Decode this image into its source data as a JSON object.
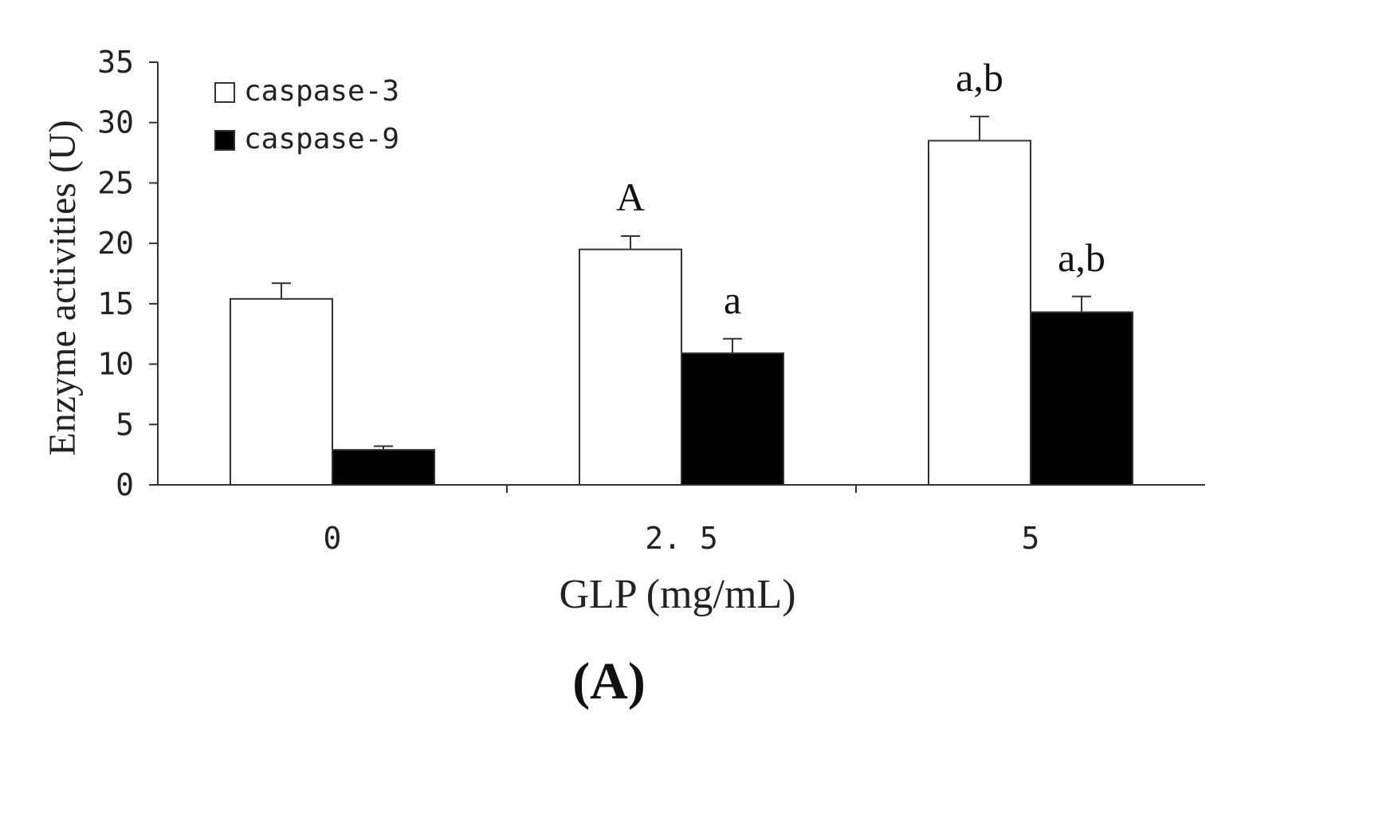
{
  "chart_data": {
    "type": "bar",
    "title": "",
    "panel_label": "(A)",
    "xlabel": "GLP (mg/mL)",
    "ylabel": "Enzyme activities (U)",
    "categories": [
      "0",
      "2. 5",
      "5"
    ],
    "ylim": [
      0,
      35
    ],
    "yticks": [
      "0",
      "5",
      "10",
      "15",
      "20",
      "25",
      "30",
      "35"
    ],
    "grid": false,
    "legend_position": "top-left",
    "series": [
      {
        "name": "caspase-3",
        "color": "#ffffff",
        "values": [
          15.4,
          19.5,
          28.5
        ],
        "errors": [
          1.3,
          1.1,
          2.0
        ],
        "annotations": [
          "",
          "A",
          "a,b"
        ]
      },
      {
        "name": "caspase-9",
        "color": "#000000",
        "values": [
          2.9,
          10.9,
          14.3
        ],
        "errors": [
          0.3,
          1.2,
          1.3
        ],
        "annotations": [
          "",
          "a",
          "a,b"
        ]
      }
    ]
  }
}
